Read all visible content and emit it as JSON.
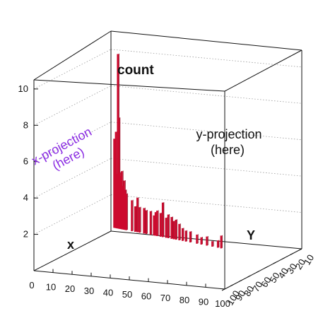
{
  "chart_data": {
    "type": "bar",
    "title": "count",
    "xlabel": "x",
    "ylabel": "Y",
    "x_ticks": [
      "0",
      "10",
      "20",
      "30",
      "40",
      "50",
      "60",
      "70",
      "80",
      "90",
      "100"
    ],
    "y_ticks": [
      "100",
      "90",
      "80",
      "70",
      "60",
      "50",
      "40",
      "30",
      "20",
      "10"
    ],
    "z_ticks": [
      "2",
      "4",
      "6",
      "8",
      "10"
    ],
    "xlim": [
      0,
      100
    ],
    "ylim": [
      0,
      100
    ],
    "zlim": [
      0,
      10.5
    ],
    "grid": true,
    "bar_color": "#cc0a2e",
    "annotations": [
      {
        "text": [
          "x-projection",
          "(here)"
        ],
        "color": "#8a2be2"
      },
      {
        "text": [
          "y-projection",
          "(here)"
        ],
        "color": "#111111"
      }
    ],
    "values": [
      {
        "x": 1,
        "z": 4.9
      },
      {
        "x": 1.8,
        "z": 4.1
      },
      {
        "x": 2.5,
        "z": 5.3
      },
      {
        "x": 3.5,
        "z": 3.0
      },
      {
        "x": 4.3,
        "z": 9.6
      },
      {
        "x": 5.2,
        "z": 6.1
      },
      {
        "x": 6,
        "z": 3.1
      },
      {
        "x": 7,
        "z": 2.9
      },
      {
        "x": 8,
        "z": 3.2
      },
      {
        "x": 9,
        "z": 2.4
      },
      {
        "x": 10,
        "z": 2.7
      },
      {
        "x": 11,
        "z": 2.2
      },
      {
        "x": 12,
        "z": 2.0
      },
      {
        "x": 17,
        "z": 1.7
      },
      {
        "x": 20,
        "z": 1.4
      },
      {
        "x": 22,
        "z": 1.9
      },
      {
        "x": 24,
        "z": 1.4
      },
      {
        "x": 28,
        "z": 1.4
      },
      {
        "x": 30,
        "z": 1.3
      },
      {
        "x": 34,
        "z": 1.3
      },
      {
        "x": 37,
        "z": 1.1
      },
      {
        "x": 38.5,
        "z": 1.3
      },
      {
        "x": 40,
        "z": 1.4
      },
      {
        "x": 43,
        "z": 1.3
      },
      {
        "x": 45,
        "z": 1.9
      },
      {
        "x": 48,
        "z": 1.1
      },
      {
        "x": 50,
        "z": 1.3
      },
      {
        "x": 53,
        "z": 1.2
      },
      {
        "x": 55,
        "z": 1.0
      },
      {
        "x": 57,
        "z": 1.1
      },
      {
        "x": 60,
        "z": 0.9
      },
      {
        "x": 63,
        "z": 0.7
      },
      {
        "x": 66,
        "z": 0.6
      },
      {
        "x": 70,
        "z": 0.6
      },
      {
        "x": 76,
        "z": 0.5
      },
      {
        "x": 80,
        "z": 0.4
      },
      {
        "x": 85,
        "z": 0.5
      },
      {
        "x": 90,
        "z": 0.3
      },
      {
        "x": 95,
        "z": 0.4
      },
      {
        "x": 98,
        "z": 0.7
      }
    ]
  }
}
